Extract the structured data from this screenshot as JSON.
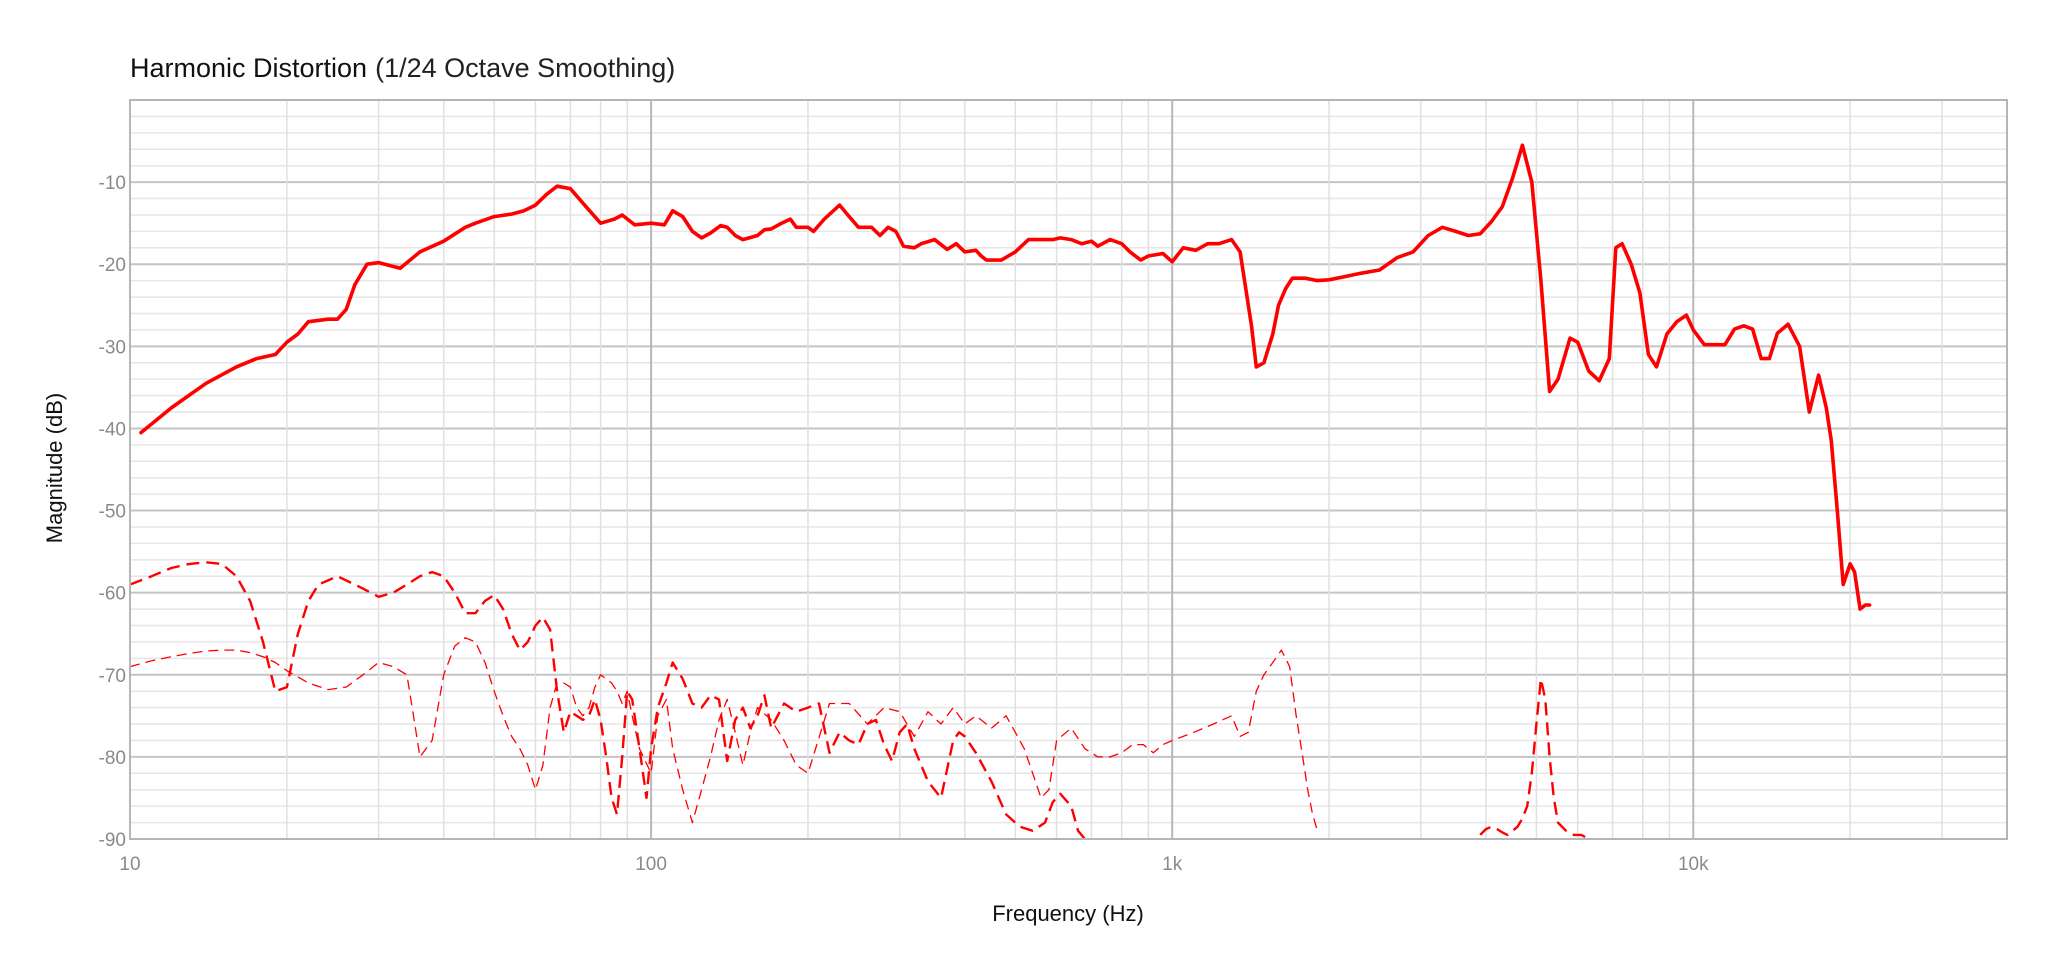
{
  "chart_data": {
    "type": "line",
    "title": "Harmonic Distortion",
    "subtitle": "(1/24 Octave Smoothing)",
    "xlabel": "Frequency (Hz)",
    "ylabel": "Magnitude (dB)",
    "x_scale": "log",
    "xlim": [
      10,
      40000
    ],
    "ylim": [
      -90,
      0
    ],
    "x_ticks": [
      {
        "value": 10,
        "label": "10"
      },
      {
        "value": 100,
        "label": "100"
      },
      {
        "value": 1000,
        "label": "1k"
      },
      {
        "value": 10000,
        "label": "10k"
      }
    ],
    "y_ticks": [
      {
        "value": -10,
        "label": "-10"
      },
      {
        "value": -20,
        "label": "-20"
      },
      {
        "value": -30,
        "label": "-30"
      },
      {
        "value": -40,
        "label": "-40"
      },
      {
        "value": -50,
        "label": "-50"
      },
      {
        "value": -60,
        "label": "-60"
      },
      {
        "value": -70,
        "label": "-70"
      },
      {
        "value": -80,
        "label": "-80"
      },
      {
        "value": -90,
        "label": "-90"
      }
    ],
    "grid": true,
    "legend": "none",
    "series": [
      {
        "color": "#ff0000",
        "style": "solid",
        "x": [
          10.5,
          12,
          14,
          16,
          17.5,
          19,
          20,
          21,
          22,
          24,
          25,
          26,
          27,
          28.5,
          30,
          33,
          36,
          40,
          44,
          46,
          50,
          54,
          57,
          60,
          63,
          66,
          70,
          75,
          80,
          85,
          88,
          93,
          100,
          106,
          110,
          115,
          120,
          125,
          130,
          136,
          140,
          145,
          150,
          160,
          165,
          170,
          178,
          185,
          190,
          200,
          205,
          215,
          230,
          240,
          250,
          265,
          275,
          285,
          295,
          305,
          320,
          330,
          350,
          370,
          385,
          400,
          420,
          430,
          440,
          470,
          500,
          530,
          560,
          590,
          610,
          640,
          670,
          700,
          720,
          760,
          800,
          830,
          870,
          900,
          960,
          1000,
          1050,
          1110,
          1170,
          1230,
          1300,
          1350,
          1420,
          1450,
          1500,
          1560,
          1600,
          1650,
          1700,
          1800,
          1900,
          2000,
          2150,
          2300,
          2500,
          2700,
          2900,
          3100,
          3300,
          3500,
          3700,
          3900,
          4100,
          4300,
          4500,
          4700,
          4900,
          5100,
          5300,
          5500,
          5800,
          6000,
          6300,
          6600,
          6900,
          7100,
          7300,
          7600,
          7900,
          8200,
          8500,
          8900,
          9300,
          9700,
          10000,
          10500,
          11000,
          11500,
          12000,
          12500,
          13000,
          13500,
          14000,
          14500,
          15200,
          16000,
          16700,
          17400,
          18000,
          18400,
          18900,
          19400,
          20000,
          20400,
          20900,
          21400,
          21800
        ],
        "y": [
          -40.5,
          -37.5,
          -34.5,
          -32.5,
          -31.5,
          -31,
          -29.5,
          -28.5,
          -27,
          -26.7,
          -26.7,
          -25.5,
          -22.5,
          -20,
          -19.8,
          -20.5,
          -18.5,
          -17.2,
          -15.5,
          -15,
          -14.2,
          -13.9,
          -13.5,
          -12.8,
          -11.5,
          -10.5,
          -10.8,
          -13,
          -15,
          -14.5,
          -14,
          -15.2,
          -15,
          -15.2,
          -13.5,
          -14.2,
          -16,
          -16.8,
          -16.2,
          -15.3,
          -15.5,
          -16.5,
          -17,
          -16.5,
          -15.8,
          -15.7,
          -15,
          -14.5,
          -15.5,
          -15.5,
          -16,
          -14.5,
          -12.8,
          -14.2,
          -15.5,
          -15.5,
          -16.5,
          -15.5,
          -16,
          -17.8,
          -18,
          -17.5,
          -17,
          -18.2,
          -17.5,
          -18.5,
          -18.3,
          -19,
          -19.5,
          -19.5,
          -18.5,
          -17,
          -17,
          -17,
          -16.8,
          -17,
          -17.5,
          -17.2,
          -17.8,
          -17,
          -17.5,
          -18.5,
          -19.5,
          -19,
          -18.7,
          -19.7,
          -18,
          -18.3,
          -17.5,
          -17.5,
          -17,
          -18.5,
          -27.5,
          -32.5,
          -32,
          -28.5,
          -25,
          -23,
          -21.7,
          -21.7,
          -22,
          -21.9,
          -21.5,
          -21.1,
          -20.7,
          -19.2,
          -18.5,
          -16.5,
          -15.5,
          -16,
          -16.5,
          -16.3,
          -14.8,
          -13,
          -9.5,
          -5.5,
          -10,
          -22,
          -35.5,
          -34,
          -29,
          -29.5,
          -33,
          -34.2,
          -31.5,
          -18,
          -17.5,
          -20,
          -23.5,
          -31,
          -32.5,
          -28.5,
          -27,
          -26.2,
          -28,
          -29.8,
          -29.8,
          -29.8,
          -27.9,
          -27.5,
          -27.9,
          -31.5,
          -31.5,
          -28.4,
          -27.3,
          -30,
          -38,
          -33.5,
          -37.5,
          -41.5,
          -50,
          -59,
          -56.5,
          -57.5,
          -62,
          -61.5,
          -61.5
        ]
      },
      {
        "color": "#ff0000",
        "style": "dashed",
        "x": [
          10,
          11,
          12,
          13,
          14,
          15,
          16,
          17,
          18,
          19,
          20,
          21,
          22,
          23,
          24,
          25,
          26,
          28,
          30,
          32,
          34,
          36,
          38,
          40,
          42,
          44,
          46,
          48,
          50,
          52,
          54,
          56,
          58,
          60,
          62,
          64,
          66,
          68,
          70,
          72,
          74,
          76,
          78,
          80,
          82,
          84,
          86,
          88,
          90,
          92,
          95,
          98,
          100,
          103,
          107,
          110,
          115,
          120,
          125,
          130,
          135,
          140,
          145,
          150,
          155,
          160,
          165,
          170,
          180,
          190,
          200,
          210,
          220,
          230,
          240,
          250,
          260,
          270,
          280,
          290,
          300,
          310,
          320,
          340,
          360,
          380,
          390,
          400,
          420,
          450,
          480,
          510,
          540,
          570,
          590,
          610,
          640,
          660,
          680
        ],
        "y": [
          -59,
          -58,
          -57,
          -56.5,
          -56.3,
          -56.5,
          -58,
          -61,
          -66,
          -72,
          -71.5,
          -65,
          -61,
          -59,
          -58.5,
          -58,
          -58.5,
          -59.5,
          -60.5,
          -60,
          -59,
          -58,
          -57.5,
          -58,
          -60,
          -62.5,
          -62.5,
          -61,
          -60.3,
          -62,
          -65,
          -67,
          -66,
          -64,
          -63,
          -64.5,
          -72,
          -77,
          -74.5,
          -75,
          -75.5,
          -75,
          -73,
          -75.5,
          -80,
          -85,
          -87,
          -80,
          -72,
          -73,
          -79,
          -85,
          -79,
          -74,
          -71,
          -68.5,
          -70.5,
          -73.5,
          -74,
          -72.5,
          -73,
          -80.5,
          -75.5,
          -74,
          -76.5,
          -75,
          -72.5,
          -76.5,
          -73.5,
          -74.5,
          -74,
          -73.5,
          -79.5,
          -77,
          -78,
          -78.5,
          -76,
          -75.5,
          -78.5,
          -80.5,
          -77,
          -76,
          -79,
          -83,
          -85,
          -78,
          -77,
          -77.5,
          -79.5,
          -83,
          -87,
          -88.5,
          -89,
          -88,
          -85.5,
          -84.5,
          -86,
          -89,
          -90
        ]
      },
      {
        "color": "#ff0000",
        "style": "dashed-thin",
        "x": [
          10,
          11,
          12,
          13,
          14,
          15,
          16,
          17,
          18,
          19,
          20,
          22,
          24,
          26,
          28,
          30,
          32,
          34,
          35,
          36,
          38,
          40,
          42,
          44,
          46,
          48,
          50,
          52,
          54,
          56,
          58,
          60,
          62,
          64,
          66,
          68,
          70,
          72,
          74,
          76,
          78,
          80,
          82,
          84,
          86,
          88,
          90,
          92,
          95,
          100,
          103,
          107,
          110,
          115,
          120,
          125,
          130,
          135,
          140,
          145,
          150,
          155,
          160,
          170,
          180,
          190,
          200,
          220,
          240,
          260,
          280,
          300,
          320,
          340,
          360,
          380,
          400,
          420,
          450,
          480,
          500,
          520,
          540,
          560,
          580,
          600,
          640,
          680,
          720,
          760,
          800,
          840,
          880,
          920,
          960,
          1000,
          1050,
          1100,
          1150,
          1200,
          1300,
          1350,
          1400,
          1450,
          1500,
          1560,
          1620,
          1680,
          1730,
          1780,
          1820,
          1860,
          1900
        ],
        "y": [
          -69,
          -68.3,
          -67.8,
          -67.4,
          -67.1,
          -67,
          -67,
          -67.3,
          -67.8,
          -68.5,
          -69.5,
          -71,
          -71.8,
          -71.5,
          -70,
          -68.5,
          -69,
          -70,
          -75,
          -80,
          -78,
          -70,
          -66.5,
          -65.5,
          -66,
          -68.5,
          -72,
          -75,
          -77.5,
          -79,
          -81,
          -84,
          -81,
          -74,
          -71,
          -71,
          -71.5,
          -74,
          -75,
          -74,
          -71.5,
          -70,
          -70.5,
          -71,
          -72,
          -73.5,
          -72,
          -75,
          -79,
          -82,
          -75,
          -73,
          -79,
          -84,
          -88,
          -84,
          -80,
          -75.5,
          -73,
          -77,
          -81,
          -77,
          -74,
          -75.5,
          -78,
          -81,
          -82,
          -73.5,
          -73.5,
          -76,
          -74,
          -74.5,
          -77.5,
          -74.5,
          -76,
          -74,
          -76,
          -75,
          -76.5,
          -75,
          -77,
          -79,
          -82,
          -85,
          -84,
          -78,
          -76.5,
          -79,
          -80,
          -80,
          -79.5,
          -78.5,
          -78.5,
          -79.5,
          -78.5,
          -78,
          -77.5,
          -77,
          -76.5,
          -76,
          -75,
          -77.5,
          -77,
          -72,
          -70,
          -68.5,
          -67,
          -69,
          -75,
          -80,
          -84,
          -87,
          -89
        ]
      },
      {
        "color": "#ff0000",
        "style": "dashed",
        "x": [
          3900,
          4000,
          4100,
          4200,
          4300,
          4400,
          4500,
          4600,
          4700,
          4800,
          4900,
          5000,
          5100,
          5200,
          5300,
          5400,
          5500,
          5700,
          5900,
          6100,
          6300
        ],
        "y": [
          -89.5,
          -88.8,
          -88.5,
          -88.8,
          -89.2,
          -89.5,
          -89,
          -88.5,
          -87.5,
          -86,
          -82,
          -76,
          -70.5,
          -73,
          -80,
          -85,
          -88,
          -89,
          -89.5,
          -89.5,
          -90
        ]
      }
    ]
  }
}
